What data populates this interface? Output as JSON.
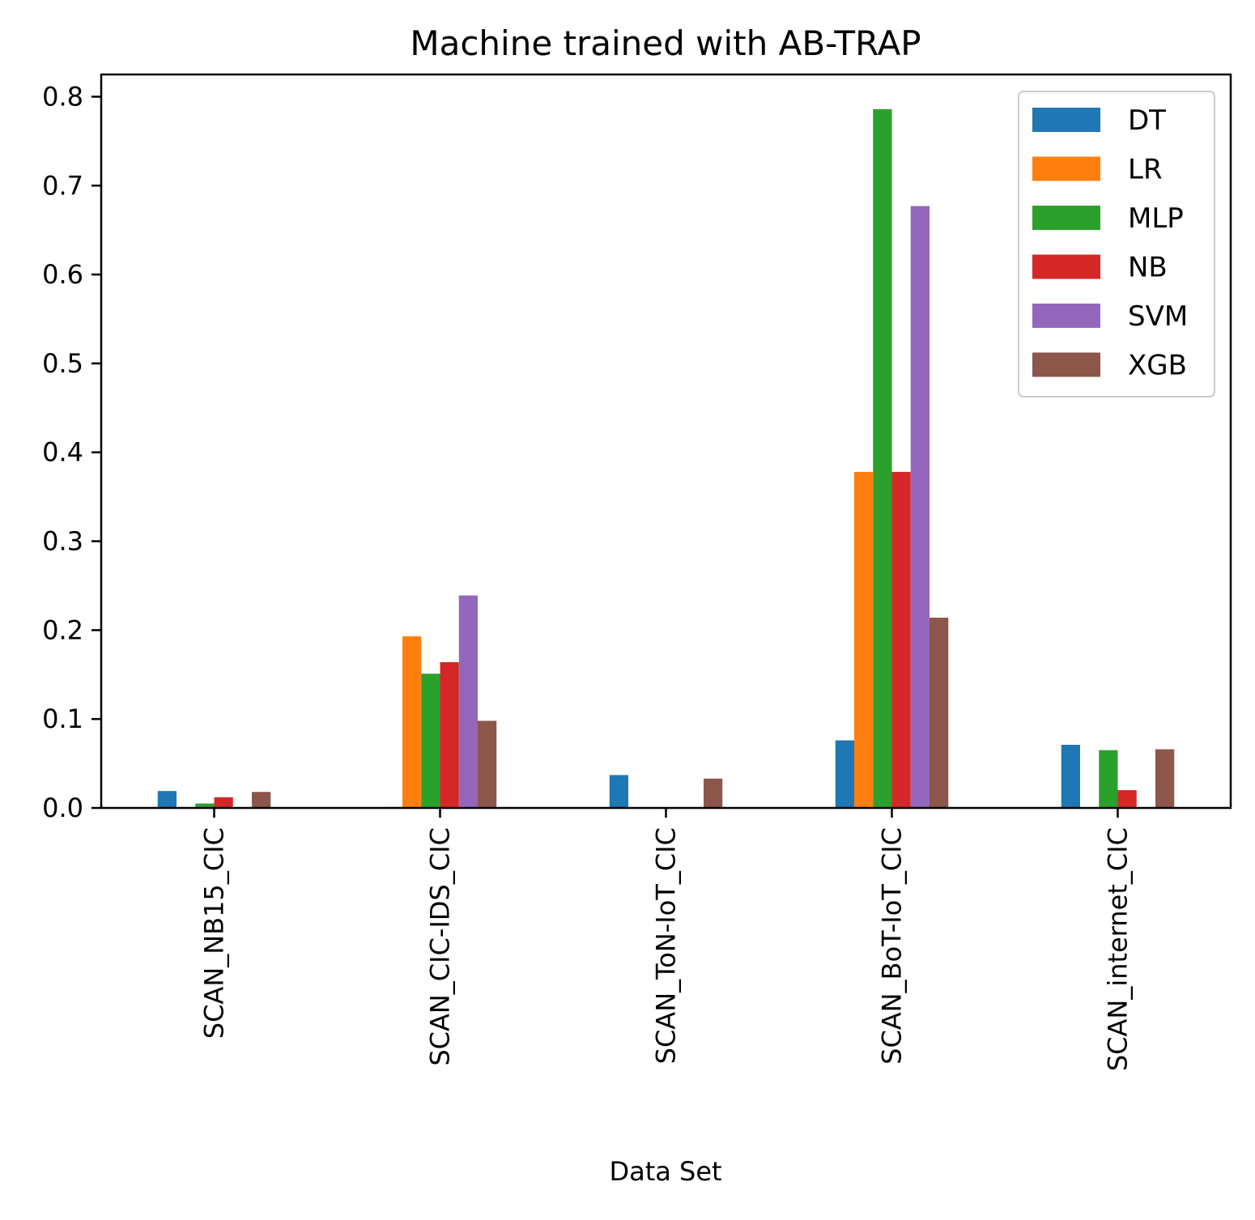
{
  "chart_data": {
    "type": "bar",
    "title": "Machine trained with AB-TRAP",
    "xlabel": "Data Set",
    "ylabel": "",
    "ylim": [
      0,
      0.825
    ],
    "yticks": [
      "0.0",
      "0.1",
      "0.2",
      "0.3",
      "0.4",
      "0.5",
      "0.6",
      "0.7",
      "0.8"
    ],
    "grid": false,
    "legend_position": "top-right",
    "categories": [
      "SCAN_NB15_CIC",
      "SCAN_CIC-IDS_CIC",
      "SCAN_ToN-IoT_CIC",
      "SCAN_BoT-IoT_CIC",
      "SCAN_internet_CIC"
    ],
    "series": [
      {
        "name": "DT",
        "color": "#1f77b4",
        "values": [
          0.019,
          0.001,
          0.037,
          0.076,
          0.071
        ]
      },
      {
        "name": "LR",
        "color": "#ff7f0e",
        "values": [
          0.0,
          0.193,
          0.0,
          0.378,
          0.0
        ]
      },
      {
        "name": "MLP",
        "color": "#2ca02c",
        "values": [
          0.005,
          0.151,
          0.0,
          0.786,
          0.065
        ]
      },
      {
        "name": "NB",
        "color": "#d62728",
        "values": [
          0.012,
          0.164,
          0.0,
          0.378,
          0.02
        ]
      },
      {
        "name": "SVM",
        "color": "#9467bd",
        "values": [
          0.0,
          0.239,
          0.0,
          0.677,
          0.0
        ]
      },
      {
        "name": "XGB",
        "color": "#8c564b",
        "values": [
          0.018,
          0.098,
          0.033,
          0.214,
          0.066
        ]
      }
    ]
  }
}
